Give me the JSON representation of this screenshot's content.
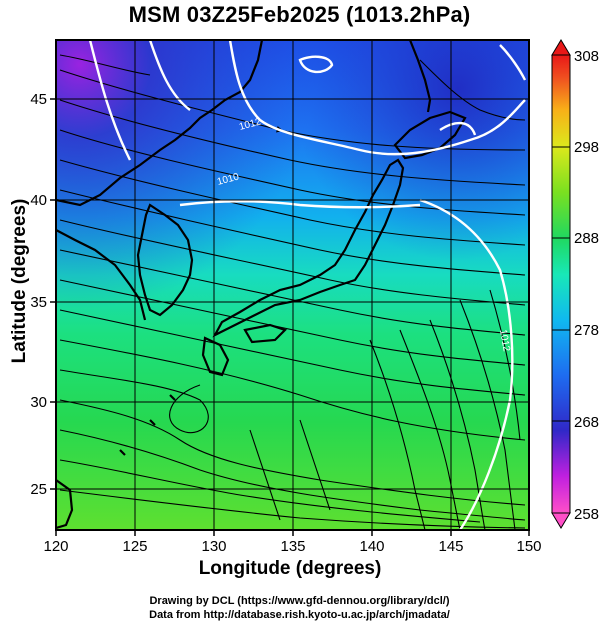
{
  "title": "MSM 03Z25Feb2025 (1013.2hPa)",
  "axes": {
    "xlabel": "Longitude (degrees)",
    "ylabel": "Latitude  (degrees)",
    "x_ticks": [
      "120",
      "125",
      "130",
      "135",
      "140",
      "145",
      "150"
    ],
    "y_ticks": [
      "25",
      "30",
      "35",
      "40",
      "45"
    ]
  },
  "colorbar": {
    "ticks": [
      "258",
      "268",
      "278",
      "288",
      "298",
      "308"
    ],
    "colors": [
      "#ff4fc8",
      "#c020e0",
      "#3028c8",
      "#1e6cf0",
      "#10b8f0",
      "#18e8b8",
      "#20d860",
      "#7ae020",
      "#dce81c",
      "#f8b018",
      "#f05020",
      "#e81818"
    ]
  },
  "contour_labels": [
    "1012",
    "1010",
    "1012"
  ],
  "credits": [
    "Drawing by DCL (https://www.gfd-dennou.org/library/dcl/)",
    "Data from http://database.rish.kyoto-u.ac.jp/arch/jmadata/"
  ]
}
